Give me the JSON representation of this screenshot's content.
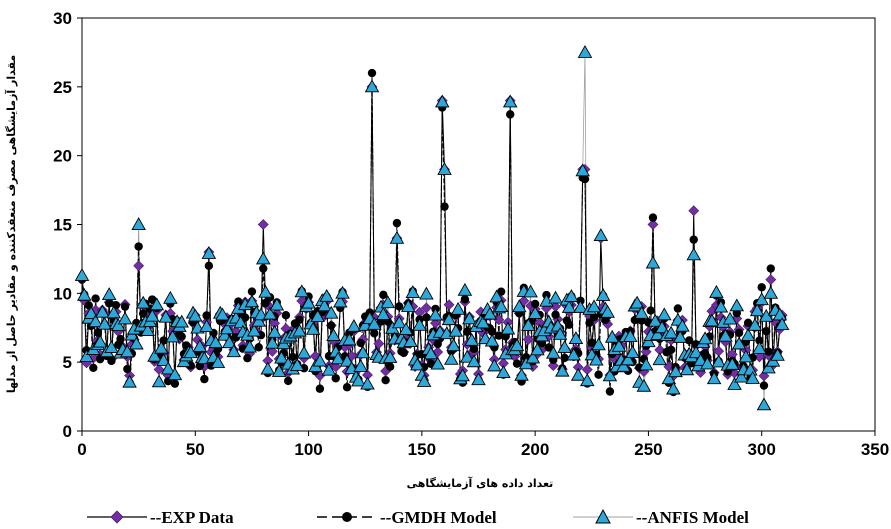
{
  "chart_data": {
    "type": "line",
    "title": "",
    "xlabel": "تعداد داده های آزمایشگاهی",
    "ylabel": "مقدار آزمایشگاهی مصرف منعقدکننده و مقادیر حاصل از مدلها",
    "xlim": [
      0,
      350
    ],
    "ylim": [
      0,
      30
    ],
    "xticks": [
      0,
      50,
      100,
      150,
      200,
      250,
      300,
      350
    ],
    "yticks": [
      0,
      5,
      10,
      15,
      20,
      25,
      30
    ],
    "grid": false,
    "legend": "bottom",
    "n_points": 310,
    "peaks": [
      {
        "x": 0,
        "exp": 11,
        "gmdh": 11,
        "anfis": 11.3
      },
      {
        "x": 25,
        "exp": 12,
        "gmdh": 13.4,
        "anfis": 15
      },
      {
        "x": 56,
        "exp": 13,
        "gmdh": 12,
        "anfis": 12.9
      },
      {
        "x": 80,
        "exp": 15,
        "gmdh": 11.8,
        "anfis": 12.5
      },
      {
        "x": 128,
        "exp": 25,
        "gmdh": 26,
        "anfis": 25
      },
      {
        "x": 139,
        "exp": 14,
        "gmdh": 15.1,
        "anfis": 14
      },
      {
        "x": 159,
        "exp": 24,
        "gmdh": 23.5,
        "anfis": 23.9
      },
      {
        "x": 160,
        "exp": 19,
        "gmdh": 16.3,
        "anfis": 19
      },
      {
        "x": 189,
        "exp": 24,
        "gmdh": 23,
        "anfis": 23.9
      },
      {
        "x": 221,
        "exp": 19,
        "gmdh": 18.4,
        "anfis": 18.9
      },
      {
        "x": 222,
        "exp": 19,
        "gmdh": 18.3,
        "anfis": 27.5
      },
      {
        "x": 229,
        "exp": 14,
        "gmdh": 8.5,
        "anfis": 14.2
      },
      {
        "x": 252,
        "exp": 15,
        "gmdh": 15.5,
        "anfis": 12.2
      },
      {
        "x": 270,
        "exp": 16,
        "gmdh": 13.9,
        "anfis": 12.8
      },
      {
        "x": 301,
        "exp": 4,
        "gmdh": 3.3,
        "anfis": 1.9
      },
      {
        "x": 304,
        "exp": 11,
        "gmdh": 11.8,
        "anfis": 10
      }
    ],
    "series": [
      {
        "name": "--EXP Data",
        "color": "#7030a0",
        "line_color": "#000000",
        "marker": "diamond"
      },
      {
        "name": "--GMDH Model",
        "color": "#000000",
        "line_color": "#000000",
        "marker": "circle",
        "dash": true
      },
      {
        "name": "--ANFIS Model",
        "color": "#2ea8d8",
        "line_color": "#a0a0a0",
        "marker": "triangle"
      }
    ]
  }
}
